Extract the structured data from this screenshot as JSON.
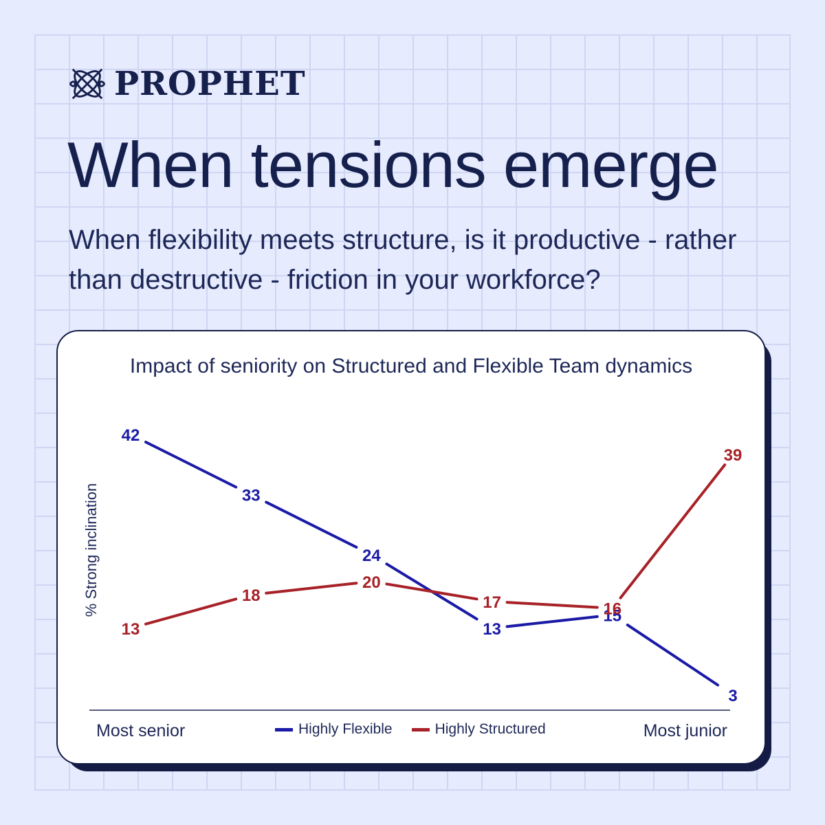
{
  "brand": {
    "logo_text": "PROPHET",
    "logo_icon": "prophet-knot-icon"
  },
  "header": {
    "title": "When tensions emerge",
    "subtitle": "When flexibility meets structure,  is it productive - rather than destructive - friction in your workforce?"
  },
  "colors": {
    "background": "#e6ebfd",
    "navy": "#16204d",
    "flexible": "#1a1aa6",
    "structured": "#a72228"
  },
  "chart_data": {
    "type": "line",
    "title": "Impact of seniority on Structured and Flexible Team dynamics",
    "ylabel": "% Strong inclination",
    "x_start_label": "Most senior",
    "x_end_label": "Most junior",
    "x": [
      1,
      2,
      3,
      4,
      5,
      6
    ],
    "ylim": [
      0,
      45
    ],
    "grid": false,
    "legend_position": "bottom-center",
    "series": [
      {
        "name": "Highly Flexible",
        "color": "#1a1aa6",
        "values": [
          42,
          33,
          24,
          13,
          15,
          3
        ]
      },
      {
        "name": "Highly Structured",
        "color": "#a72228",
        "values": [
          13,
          18,
          20,
          17,
          16,
          39
        ]
      }
    ]
  }
}
